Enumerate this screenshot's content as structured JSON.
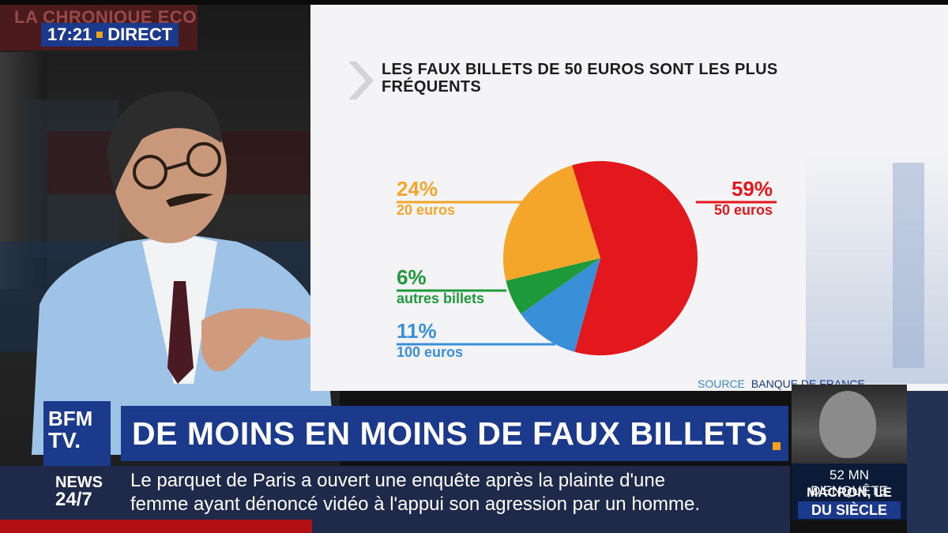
{
  "clock": "17:21",
  "live_label": "DIRECT",
  "corner_title": "LA CHRONIQUE ECO",
  "chart_data": {
    "type": "pie",
    "title": "LES FAUX BILLETS DE 50 EUROS SONT LES PLUS FRÉQUENTS",
    "slices": [
      {
        "label": "50 euros",
        "pct_label": "59%",
        "value": 59,
        "color": "#e3181d"
      },
      {
        "label": "100 euros",
        "pct_label": "11%",
        "value": 11,
        "color": "#3a8fd9"
      },
      {
        "label": "autres billets",
        "pct_label": "6%",
        "value": 6,
        "color": "#1f9a3b"
      },
      {
        "label": "20 euros",
        "pct_label": "24%",
        "value": 24,
        "color": "#f3a62a"
      }
    ],
    "source_key": "SOURCE",
    "source_value": "BANQUE DE FRANCE"
  },
  "brand": {
    "line1": "BFM",
    "line2": "TV."
  },
  "headline": "DE MOINS EN MOINS DE FAUX BILLETS",
  "ticker": {
    "channel_line1": "NEWS",
    "channel_line2": "24/7",
    "line1": "Le parquet de Paris a ouvert une enquête après la plainte d'une",
    "line2": "femme ayant dénoncé vidéo à l'appui son agression par un homme."
  },
  "promo": {
    "line1": "52 MN D'ENQUÊTE",
    "line2": "MACRON, LE CASSE",
    "line3": "DU SIÈCLE"
  }
}
